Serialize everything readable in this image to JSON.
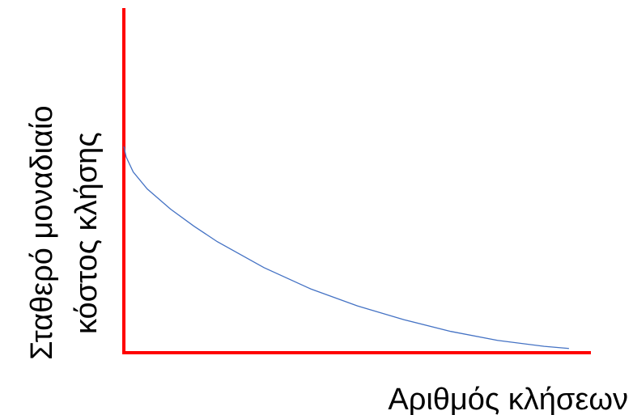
{
  "chart_data": {
    "type": "line",
    "title": "",
    "xlabel": "Αριθμός κλήσεων",
    "ylabel_lines": [
      "Σταθερό μοναδιαίο",
      "κόστος κλήσης"
    ],
    "ticks": {
      "x": [],
      "y": []
    },
    "legend": "none",
    "grid": false,
    "series": [
      {
        "points": [
          {
            "x": 0.0,
            "y": 0.97
          },
          {
            "x": 0.005,
            "y": 0.92
          },
          {
            "x": 0.02,
            "y": 0.85
          },
          {
            "x": 0.05,
            "y": 0.77
          },
          {
            "x": 0.1,
            "y": 0.675
          },
          {
            "x": 0.15,
            "y": 0.595
          },
          {
            "x": 0.2,
            "y": 0.522
          },
          {
            "x": 0.3,
            "y": 0.4
          },
          {
            "x": 0.4,
            "y": 0.3
          },
          {
            "x": 0.5,
            "y": 0.22
          },
          {
            "x": 0.6,
            "y": 0.155
          },
          {
            "x": 0.7,
            "y": 0.1
          },
          {
            "x": 0.8,
            "y": 0.058
          },
          {
            "x": 0.9,
            "y": 0.03
          },
          {
            "x": 0.953,
            "y": 0.02
          }
        ]
      }
    ],
    "xlim": [
      0,
      1
    ],
    "ylim": [
      0,
      1.62
    ]
  },
  "colors": {
    "axes": "#ff0000",
    "curve": "#4472c4",
    "text": "#000000",
    "background": "#ffffff"
  }
}
